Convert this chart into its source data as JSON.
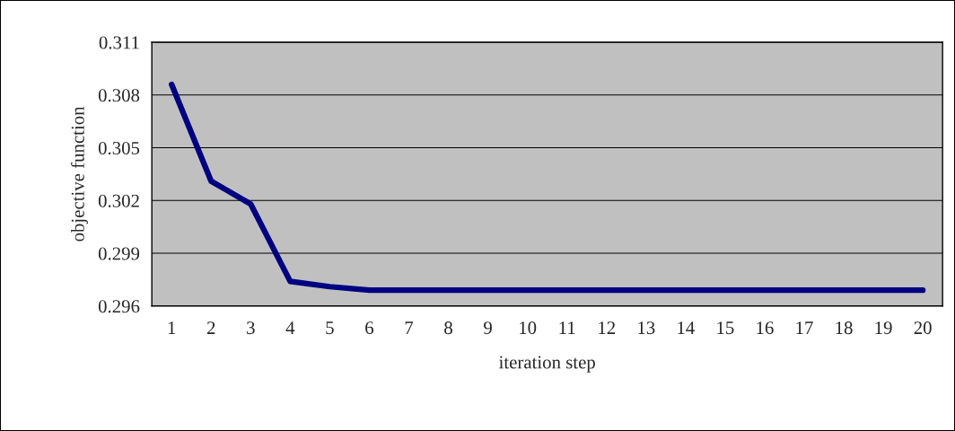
{
  "chart_data": {
    "type": "line",
    "xlabel": "iteration step",
    "ylabel": "objective function",
    "categories": [
      "1",
      "2",
      "3",
      "4",
      "5",
      "6",
      "7",
      "8",
      "9",
      "10",
      "11",
      "12",
      "13",
      "14",
      "15",
      "16",
      "17",
      "18",
      "19",
      "20"
    ],
    "series": [
      {
        "color": "#000080",
        "values": [
          0.3086,
          0.3031,
          0.3018,
          0.2974,
          0.2971,
          0.2969,
          0.2969,
          0.2969,
          0.2969,
          0.2969,
          0.2969,
          0.2969,
          0.2969,
          0.2969,
          0.2969,
          0.2969,
          0.2969,
          0.2969,
          0.2969,
          0.2969
        ]
      }
    ],
    "ylim": [
      0.296,
      0.311
    ],
    "yticks": [
      0.296,
      0.299,
      0.302,
      0.305,
      0.308,
      0.311
    ],
    "grid": "y",
    "marker": "none",
    "line_style": "solid"
  }
}
